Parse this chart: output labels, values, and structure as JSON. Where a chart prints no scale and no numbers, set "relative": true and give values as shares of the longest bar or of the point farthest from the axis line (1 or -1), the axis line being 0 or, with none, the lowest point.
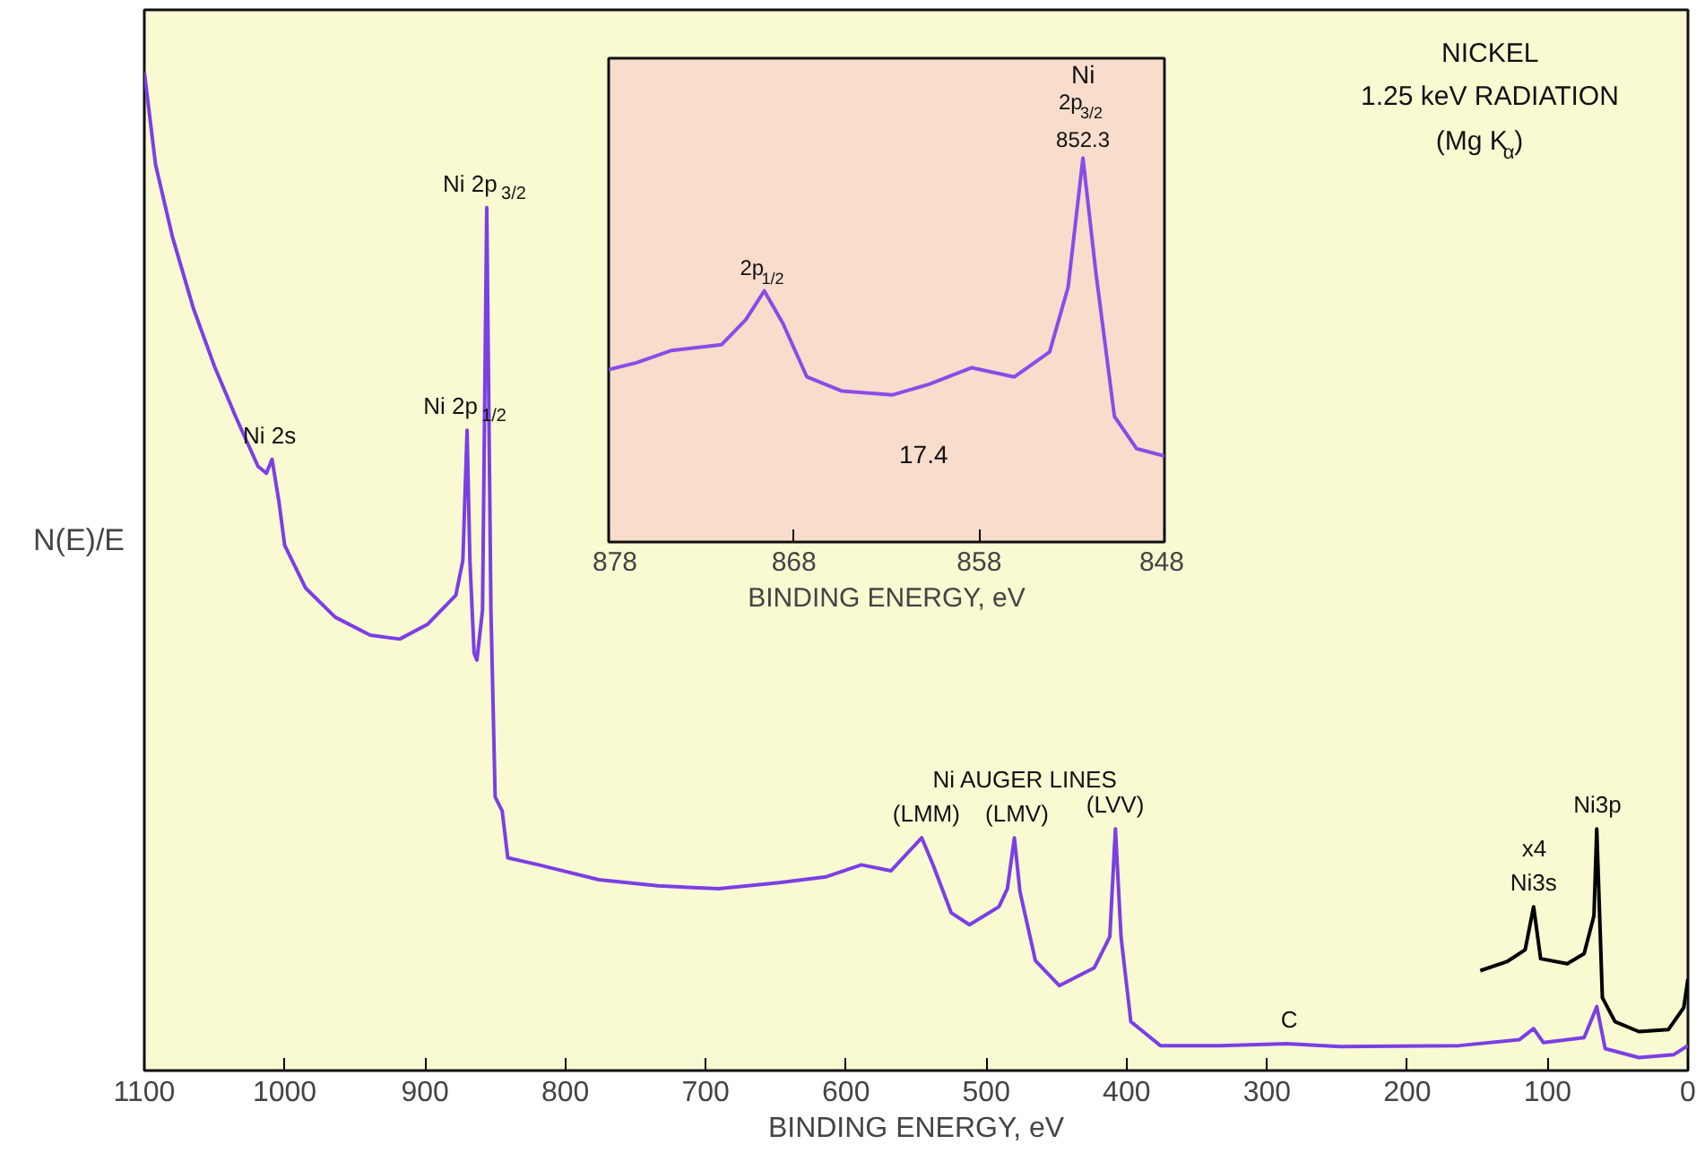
{
  "chart_data": [
    {
      "type": "line",
      "relative": true,
      "xlim": [
        1100,
        0
      ],
      "xticks": [
        1100,
        1000,
        900,
        800,
        700,
        600,
        500,
        400,
        300,
        200,
        100,
        0
      ],
      "xlabel": "BINDING ENERGY, eV",
      "ylabel": "N(E)/E",
      "series": [
        {
          "color": "#7b3fe4",
          "x": [
            1100,
            1092,
            1080,
            1065,
            1050,
            1035,
            1019,
            1013,
            1009,
            1004,
            1000,
            985,
            964,
            939,
            918,
            898,
            878,
            873,
            870,
            868,
            865,
            863,
            859,
            856,
            853,
            850,
            845,
            841,
            819,
            776,
            734,
            691,
            649,
            614,
            589,
            568,
            546,
            538,
            525,
            512,
            491,
            485,
            480,
            476,
            465,
            448,
            423,
            412,
            408,
            404,
            397,
            376,
            333,
            286,
            248,
            163,
            120,
            110,
            103,
            74,
            65,
            59,
            35,
            10,
            0
          ],
          "values": [
            1.0,
            0.907,
            0.835,
            0.763,
            0.705,
            0.655,
            0.605,
            0.598,
            0.612,
            0.569,
            0.526,
            0.483,
            0.454,
            0.436,
            0.432,
            0.447,
            0.476,
            0.511,
            0.641,
            0.511,
            0.418,
            0.411,
            0.461,
            0.864,
            0.461,
            0.274,
            0.26,
            0.213,
            0.206,
            0.191,
            0.185,
            0.182,
            0.188,
            0.194,
            0.206,
            0.2,
            0.233,
            0.206,
            0.158,
            0.146,
            0.164,
            0.182,
            0.233,
            0.179,
            0.11,
            0.085,
            0.103,
            0.134,
            0.242,
            0.134,
            0.049,
            0.025,
            0.025,
            0.027,
            0.024,
            0.025,
            0.031,
            0.042,
            0.028,
            0.033,
            0.064,
            0.022,
            0.013,
            0.016,
            0.025
          ]
        },
        {
          "color": "#000000",
          "x": [
            148,
            129,
            116,
            110,
            105,
            86,
            74,
            67,
            65,
            61,
            52,
            35,
            14,
            3,
            0
          ],
          "values": [
            0.1,
            0.109,
            0.121,
            0.164,
            0.112,
            0.107,
            0.117,
            0.155,
            0.242,
            0.073,
            0.049,
            0.039,
            0.041,
            0.063,
            0.092
          ]
        }
      ],
      "annotations": [
        "NICKEL",
        "1.25 keV RADIATION",
        "(Mg K$_{α}$)",
        {
          "text": "Ni 2s",
          "x": 1009,
          "y": 0.612
        },
        {
          "text": "Ni 2p$_{1/2}$",
          "x": 870,
          "y": 0.641
        },
        {
          "text": "Ni 2p$_{3/2}$",
          "x": 856,
          "y": 0.864
        },
        {
          "text": "(LMM)",
          "x": 546,
          "y": 0.233
        },
        {
          "text": "Ni AUGER LINES",
          "x": 480,
          "y": 0.233
        },
        {
          "text": "(LMV)",
          "x": 480,
          "y": 0.233
        },
        {
          "text": "(LVV)",
          "x": 408,
          "y": 0.242
        },
        {
          "text": "C",
          "x": 286,
          "y": 0.027
        },
        {
          "text": "x4",
          "x": 110,
          "y": 0.164
        },
        {
          "text": "Ni3s",
          "x": 110,
          "y": 0.164
        },
        {
          "text": "Ni3p",
          "x": 65,
          "y": 0.242
        }
      ]
    },
    {
      "type": "line",
      "relative": true,
      "xlim": [
        878,
        848
      ],
      "xticks": [
        878,
        868,
        858,
        848
      ],
      "xlabel": "BINDING ENERGY, eV",
      "series": [
        {
          "color": "#8a4be8",
          "x": [
            878,
            876.5,
            874.6,
            871.9,
            870.6,
            869.6,
            868.6,
            867.3,
            865.4,
            862.7,
            860.7,
            858.4,
            856.1,
            854.2,
            853.2,
            852.4,
            851.7,
            850.7,
            849.5,
            848
          ],
          "values": [
            0.449,
            0.467,
            0.499,
            0.514,
            0.579,
            0.654,
            0.57,
            0.43,
            0.393,
            0.383,
            0.411,
            0.454,
            0.43,
            0.495,
            0.664,
            1.0,
            0.701,
            0.327,
            0.243,
            0.224
          ]
        }
      ],
      "annotations": [
        {
          "text": "2p$_{1/2}$",
          "x": 869.6,
          "y": 0.654
        },
        "Ni",
        {
          "text": "2p$_{3/2}$",
          "x": 852.4,
          "y": 1.0
        },
        {
          "text": "852.3",
          "x": 852.4,
          "y": 1.0
        },
        "17.4"
      ]
    }
  ]
}
